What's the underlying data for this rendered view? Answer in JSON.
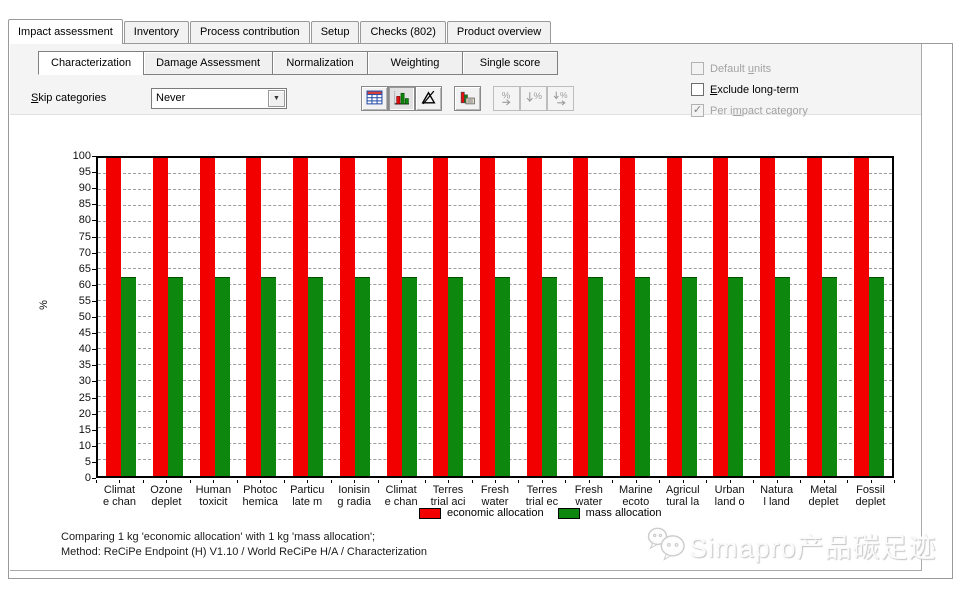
{
  "main_tabs": {
    "items": [
      {
        "label": "Impact assessment",
        "active": true
      },
      {
        "label": "Inventory",
        "active": false
      },
      {
        "label": "Process contribution",
        "active": false
      },
      {
        "label": "Setup",
        "active": false
      },
      {
        "label": "Checks (802)",
        "active": false
      },
      {
        "label": "Product overview",
        "active": false
      }
    ]
  },
  "sub_tabs": {
    "items": [
      {
        "label": "Characterization",
        "active": true
      },
      {
        "label": "Damage Assessment",
        "active": false
      },
      {
        "label": "Normalization",
        "active": false
      },
      {
        "label": "Weighting",
        "active": false
      },
      {
        "label": "Single score",
        "active": false
      }
    ]
  },
  "controls": {
    "skip_categories": {
      "label_pre": "",
      "label_key": "S",
      "label_post": "kip categories",
      "value": "Never"
    },
    "toolbar": [
      {
        "icon": "table-view-icon",
        "state": "normal",
        "gap_before": false
      },
      {
        "icon": "bar-chart-view-icon",
        "state": "pressed",
        "gap_before": false
      },
      {
        "icon": "delta-slash-icon",
        "state": "normal",
        "gap_before": false
      },
      {
        "icon": "grouped-bar-icon",
        "state": "normal",
        "gap_before": true
      },
      {
        "icon": "percent-arrow-icon",
        "state": "disabled",
        "gap_before": true
      },
      {
        "icon": "down-percent-icon",
        "state": "disabled",
        "gap_before": false
      },
      {
        "icon": "down-percent-arrow-icon",
        "state": "disabled",
        "gap_before": false
      }
    ],
    "checkboxes": [
      {
        "label_pre": "Default ",
        "label_key": "u",
        "label_post": "nits",
        "checked": false,
        "disabled": true
      },
      {
        "label_pre": "",
        "label_key": "E",
        "label_post": "xclude long-term",
        "checked": false,
        "disabled": false
      },
      {
        "label_pre": "Per i",
        "label_key": "m",
        "label_post": "pact category",
        "checked": true,
        "disabled": true
      }
    ]
  },
  "chart_data": {
    "type": "bar",
    "title": "",
    "ylabel": "%",
    "ylim": [
      0,
      100
    ],
    "ytick_step": 5,
    "grid": "horizontal-dashed",
    "legend_position": "bottom-center",
    "categories": [
      [
        "Climat",
        "e chan"
      ],
      [
        "Ozone",
        "deplet"
      ],
      [
        "Human",
        "toxicit"
      ],
      [
        "Photoc",
        "hemica"
      ],
      [
        "Particu",
        "late m"
      ],
      [
        "Ionisin",
        "g radia"
      ],
      [
        "Climat",
        "e chan"
      ],
      [
        "Terres",
        "trial aci"
      ],
      [
        "Fresh",
        "water"
      ],
      [
        "Terres",
        "trial ec"
      ],
      [
        "Fresh",
        "water"
      ],
      [
        "Marine",
        "ecoto"
      ],
      [
        "Agricul",
        "tural la"
      ],
      [
        "Urban",
        "land o"
      ],
      [
        "Natura",
        "l land"
      ],
      [
        "Metal",
        "deplet"
      ],
      [
        "Fossil",
        "deplet"
      ]
    ],
    "series": [
      {
        "name": "economic allocation",
        "color": "#f20000",
        "values": [
          100,
          100,
          100,
          100,
          100,
          100,
          100,
          100,
          100,
          100,
          100,
          100,
          100,
          100,
          100,
          100,
          100
        ]
      },
      {
        "name": "mass allocation",
        "color": "#0d870d",
        "values": [
          62.5,
          62.5,
          62.5,
          62.5,
          62.5,
          62.5,
          62.5,
          62.5,
          62.5,
          62.5,
          62.5,
          62.5,
          62.5,
          62.5,
          62.5,
          62.5,
          62.5
        ]
      }
    ]
  },
  "footer": {
    "line1": "Comparing 1 kg 'economic allocation' with 1 kg 'mass allocation';",
    "line2": "Method: ReCiPe Endpoint (H) V1.10 / World ReCiPe H/A / Characterization"
  },
  "watermark": {
    "text": "Simapro产品碳足迹",
    "icon": "wechat-icon"
  }
}
